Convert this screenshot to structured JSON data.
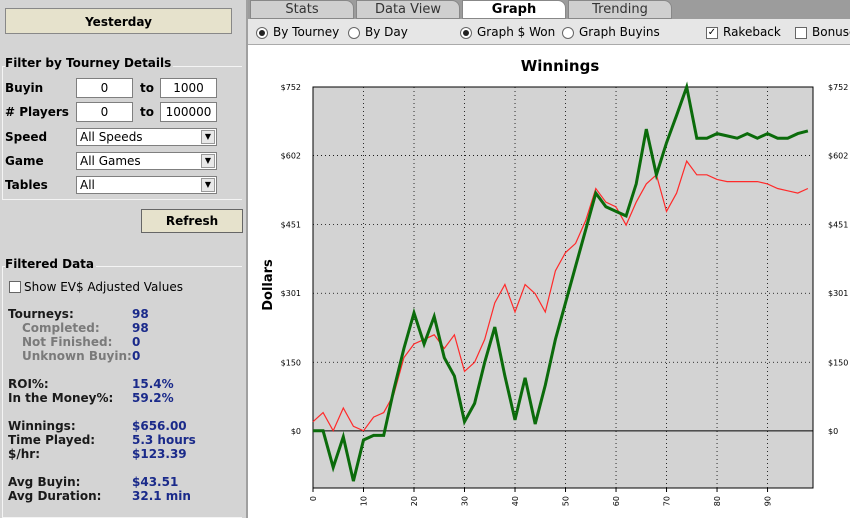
{
  "sidebar": {
    "date_button": "Yesterday",
    "filter_title": "Filter by Tourney Details",
    "ranges": [
      {
        "label": "Buyin",
        "from": "0",
        "to_label": "to",
        "to": "1000"
      },
      {
        "label": "# Players",
        "from": "0",
        "to_label": "to",
        "to": "100000"
      }
    ],
    "selects": [
      {
        "label": "Speed",
        "value": "All Speeds"
      },
      {
        "label": "Game",
        "value": "All Games"
      },
      {
        "label": "Tables",
        "value": "All"
      }
    ],
    "refresh": "Refresh",
    "filtered_title": "Filtered Data",
    "ev_checkbox": "Show EV$ Adjusted Values",
    "stats": [
      [
        {
          "label": "Tourneys:",
          "value": "98",
          "details": [
            {
              "label": "Completed:",
              "value": "98"
            },
            {
              "label": "Not Finished:",
              "value": "0"
            },
            {
              "label": "Unknown Buyin:",
              "value": "0"
            }
          ]
        }
      ],
      [
        {
          "label": "ROI%:",
          "value": "15.4%"
        },
        {
          "label": "In the Money%:",
          "value": "59.2%"
        }
      ],
      [
        {
          "label": "Winnings:",
          "value": "$656.00"
        },
        {
          "label": "Time Played:",
          "value": "5.3 hours"
        },
        {
          "label": "$/hr:",
          "value": "$123.39"
        }
      ],
      [
        {
          "label": "Avg Buyin:",
          "value": "$43.51"
        },
        {
          "label": "Avg Duration:",
          "value": "32.1 min"
        }
      ]
    ]
  },
  "tabs": {
    "items": [
      "Stats",
      "Data View",
      "Graph",
      "Trending"
    ],
    "active": 2
  },
  "options": {
    "radio_groups": [
      [
        {
          "label": "By Tourney",
          "checked": true
        },
        {
          "label": "By Day",
          "checked": false
        }
      ],
      [
        {
          "label": "Graph $ Won",
          "checked": true
        },
        {
          "label": "Graph Buyins",
          "checked": false
        }
      ]
    ],
    "checkboxes": [
      {
        "label": "Rakeback",
        "checked": true
      },
      {
        "label": "Bonuse",
        "checked": false
      }
    ]
  },
  "chart_data": {
    "type": "line",
    "title": "Winnings",
    "y_label": "Dollars",
    "x": [
      0,
      2,
      4,
      6,
      8,
      10,
      12,
      14,
      16,
      18,
      20,
      22,
      24,
      26,
      28,
      30,
      32,
      34,
      36,
      38,
      40,
      42,
      44,
      46,
      48,
      50,
      52,
      54,
      56,
      58,
      60,
      62,
      64,
      66,
      68,
      70,
      72,
      74,
      76,
      78,
      80,
      82,
      84,
      86,
      88,
      90,
      92,
      94,
      96,
      98
    ],
    "series": [
      {
        "color": "#ff2a2a",
        "values": [
          20,
          40,
          0,
          50,
          10,
          0,
          30,
          40,
          80,
          160,
          190,
          200,
          210,
          180,
          210,
          130,
          150,
          200,
          280,
          320,
          260,
          320,
          300,
          260,
          350,
          390,
          410,
          460,
          530,
          500,
          490,
          450,
          500,
          540,
          560,
          480,
          520,
          590,
          560,
          560,
          550,
          545,
          545,
          545,
          545,
          540,
          530,
          525,
          520,
          530
        ]
      },
      {
        "color": "#0b6b0b",
        "values": [
          0,
          0,
          -80,
          -13,
          -110,
          -20,
          -10,
          -10,
          90,
          180,
          258,
          190,
          250,
          160,
          120,
          20,
          60,
          150,
          227,
          120,
          24,
          116,
          15,
          100,
          200,
          280,
          360,
          440,
          520,
          490,
          480,
          470,
          540,
          660,
          560,
          630,
          690,
          752,
          640,
          640,
          650,
          645,
          640,
          650,
          640,
          650,
          640,
          640,
          650,
          656
        ]
      }
    ],
    "xlim": [
      0,
      99
    ],
    "xticks": [
      0,
      10,
      20,
      30,
      40,
      50,
      60,
      70,
      80,
      90
    ],
    "ylim": [
      -125,
      752
    ],
    "yticks": [
      {
        "value": 0,
        "label": "$0"
      },
      {
        "value": 150,
        "label": "$150"
      },
      {
        "value": 301,
        "label": "$301"
      },
      {
        "value": 451,
        "label": "$451"
      },
      {
        "value": 602,
        "label": "$602"
      },
      {
        "value": 752,
        "label": "$752"
      }
    ],
    "grid": true
  }
}
